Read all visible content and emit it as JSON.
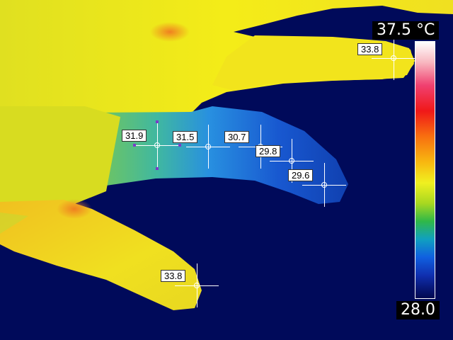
{
  "scale": {
    "max_label": "37.5 °C",
    "min_label": "28.0",
    "max_value": 37.5,
    "min_value": 28.0,
    "palette_name": "iron-rainbow"
  },
  "spots": [
    {
      "id": "spot-1",
      "value": "31.9",
      "selected": true
    },
    {
      "id": "spot-2",
      "value": "31.5",
      "selected": false
    },
    {
      "id": "spot-3",
      "value": "30.7",
      "selected": false
    },
    {
      "id": "spot-4",
      "value": "29.8",
      "selected": false
    },
    {
      "id": "spot-5",
      "value": "29.6",
      "selected": false
    },
    {
      "id": "spot-6",
      "value": "33.8",
      "selected": false
    },
    {
      "id": "spot-7",
      "value": "33.8",
      "selected": false
    }
  ],
  "colors": {
    "background": "#000a5a",
    "label_bg": "#ffffff",
    "selection_handle": "#7a3cc8"
  }
}
